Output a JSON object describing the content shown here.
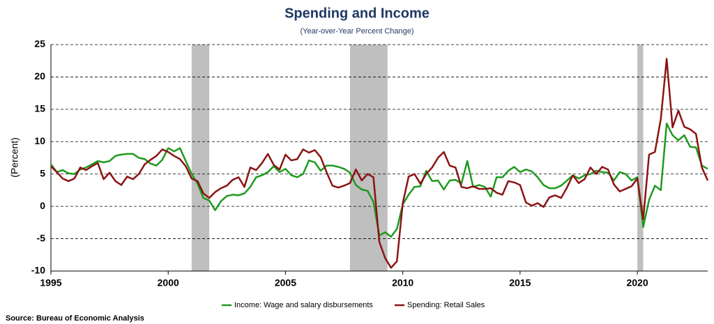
{
  "chart_data": {
    "type": "line",
    "title": "Spending and Income",
    "subtitle": "(Year-over-Year Percent Change)",
    "y_label": "(Percent)",
    "source": "Source: Bureau of Economic Analysis",
    "x": [
      1995,
      1995.25,
      1995.5,
      1995.75,
      1996,
      1996.25,
      1996.5,
      1996.75,
      1997,
      1997.25,
      1997.5,
      1997.75,
      1998,
      1998.25,
      1998.5,
      1998.75,
      1999,
      1999.25,
      1999.5,
      1999.75,
      2000,
      2000.25,
      2000.5,
      2000.75,
      2001,
      2001.25,
      2001.5,
      2001.75,
      2002,
      2002.25,
      2002.5,
      2002.75,
      2003,
      2003.25,
      2003.5,
      2003.75,
      2004,
      2004.25,
      2004.5,
      2004.75,
      2005,
      2005.25,
      2005.5,
      2005.75,
      2006,
      2006.25,
      2006.5,
      2006.75,
      2007,
      2007.25,
      2007.5,
      2007.75,
      2008,
      2008.25,
      2008.5,
      2008.75,
      2009,
      2009.25,
      2009.5,
      2009.75,
      2010,
      2010.25,
      2010.5,
      2010.75,
      2011,
      2011.25,
      2011.5,
      2011.75,
      2012,
      2012.25,
      2012.5,
      2012.75,
      2013,
      2013.25,
      2013.5,
      2013.75,
      2014,
      2014.25,
      2014.5,
      2014.75,
      2015,
      2015.25,
      2015.5,
      2015.75,
      2016,
      2016.25,
      2016.5,
      2016.75,
      2017,
      2017.25,
      2017.5,
      2017.75,
      2018,
      2018.25,
      2018.5,
      2018.75,
      2019,
      2019.25,
      2019.5,
      2019.75,
      2020,
      2020.25,
      2020.5,
      2020.75,
      2021,
      2021.25,
      2021.5,
      2021.75,
      2022,
      2022.25,
      2022.5,
      2022.75,
      2023
    ],
    "series": [
      {
        "name": "Income: Wage and salary disbursements",
        "color": "#1e9a1e",
        "values": [
          6.5,
          5.3,
          5.6,
          5.1,
          5.0,
          5.7,
          6.0,
          6.5,
          7.0,
          6.8,
          7.0,
          7.8,
          8.0,
          8.1,
          8.1,
          7.5,
          7.3,
          6.6,
          6.3,
          7.2,
          9.0,
          8.5,
          9.0,
          7.0,
          5.0,
          3.5,
          1.3,
          0.9,
          -0.6,
          0.8,
          1.6,
          1.8,
          1.7,
          2.0,
          3.0,
          4.5,
          4.8,
          5.3,
          6.2,
          5.3,
          5.8,
          4.8,
          4.5,
          5.0,
          7.1,
          6.8,
          5.5,
          6.3,
          6.3,
          6.1,
          5.8,
          5.2,
          3.3,
          2.6,
          2.4,
          0.7,
          -4.5,
          -4.0,
          -4.7,
          -3.5,
          0.3,
          1.8,
          3.0,
          3.1,
          5.5,
          3.9,
          4.0,
          2.6,
          4.0,
          4.1,
          3.5,
          7.0,
          3.0,
          3.3,
          3.0,
          1.5,
          4.5,
          4.5,
          5.5,
          6.1,
          5.3,
          5.7,
          5.4,
          4.5,
          3.3,
          2.8,
          2.8,
          3.2,
          4.0,
          4.8,
          4.3,
          4.8,
          5.0,
          5.5,
          5.3,
          5.2,
          4.0,
          5.3,
          5.0,
          4.0,
          4.5,
          -3.2,
          1.0,
          3.2,
          2.5,
          12.8,
          11.0,
          10.2,
          11.0,
          9.2,
          9.1,
          6.3,
          5.8
        ]
      },
      {
        "name": "Spending: Retail Sales",
        "color": "#8b1414",
        "values": [
          6.2,
          5.3,
          4.3,
          3.9,
          4.3,
          6.0,
          5.6,
          6.2,
          6.7,
          4.2,
          5.2,
          3.9,
          3.3,
          4.6,
          4.2,
          5.0,
          6.5,
          7.2,
          7.8,
          8.8,
          8.4,
          7.8,
          7.3,
          6.2,
          4.3,
          3.9,
          2.0,
          1.3,
          2.2,
          2.8,
          3.2,
          4.1,
          4.5,
          3.0,
          6.0,
          5.6,
          6.7,
          8.1,
          6.4,
          5.7,
          8.0,
          7.1,
          7.3,
          8.8,
          8.3,
          8.7,
          7.6,
          5.3,
          3.2,
          2.9,
          3.2,
          3.6,
          5.7,
          4.0,
          5.0,
          4.5,
          -5.5,
          -8.0,
          -9.5,
          -8.5,
          0.5,
          4.6,
          5.0,
          3.5,
          5.0,
          6.0,
          7.5,
          8.4,
          6.3,
          6.0,
          3.0,
          2.8,
          3.1,
          2.7,
          2.7,
          2.8,
          2.1,
          1.8,
          3.9,
          3.7,
          3.3,
          0.6,
          0.1,
          0.5,
          -0.1,
          1.4,
          1.7,
          1.3,
          2.9,
          4.8,
          3.6,
          4.2,
          6.0,
          5.0,
          6.1,
          5.7,
          3.4,
          2.3,
          2.7,
          3.1,
          4.3,
          -2.0,
          8.0,
          8.4,
          13.5,
          22.8,
          12.2,
          14.8,
          12.3,
          11.9,
          11.2,
          6.0,
          4.0
        ]
      }
    ],
    "recessions": [
      [
        2001.0,
        2001.75
      ],
      [
        2007.75,
        2009.35
      ],
      [
        2020.0,
        2020.25
      ]
    ],
    "recession_color": "#bfbfbf",
    "xlim": [
      1995,
      2023
    ],
    "xticks": [
      1995,
      2000,
      2005,
      2010,
      2015,
      2020
    ],
    "ylim": [
      -10,
      25
    ],
    "yticks": [
      -10,
      -5,
      0,
      5,
      10,
      15,
      20,
      25
    ],
    "grid": true
  }
}
